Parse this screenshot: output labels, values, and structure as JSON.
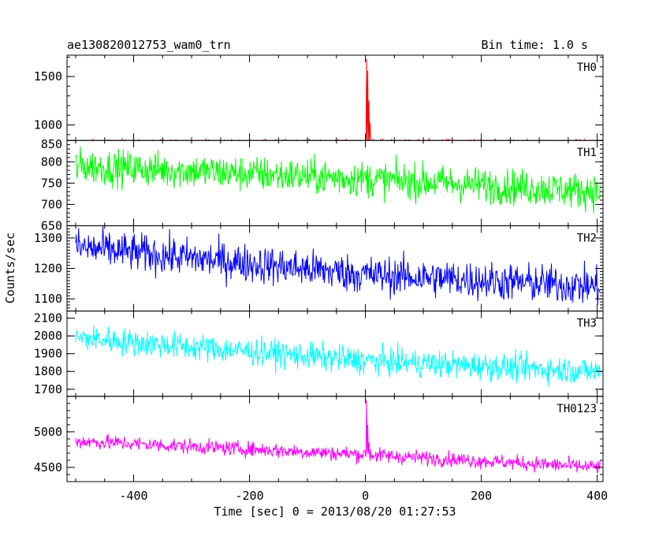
{
  "chart_data": {
    "type": "line",
    "title": "ae130820012753_wam0_trn",
    "subtitle": "Bin time: 1.0 s",
    "xlabel": "Time [sec] 0 = 2013/08/20 01:27:53",
    "ylabel": "Counts/sec",
    "xlim": [
      -515,
      410
    ],
    "x_ticks": [
      -400,
      -200,
      0,
      200,
      400
    ],
    "x_range": [
      -500,
      405
    ],
    "grid": false,
    "panels": [
      {
        "name": "TH0",
        "color": "#ff0000",
        "ylim": [
          840,
          1720
        ],
        "y_ticks": [
          1000,
          1500
        ],
        "trend": [
          [
            -500,
            820
          ],
          [
            0,
            820
          ],
          [
            405,
            820
          ]
        ],
        "noise_amplitude": 22,
        "peaks": [
          {
            "x": 2,
            "y": 1680
          },
          {
            "x": 4,
            "y": 1560
          },
          {
            "x": 6,
            "y": 1250
          },
          {
            "x": 8,
            "y": 1020
          }
        ]
      },
      {
        "name": "TH1",
        "color": "#00ff00",
        "ylim": [
          650,
          850
        ],
        "y_ticks": [
          650,
          700,
          750,
          800,
          850
        ],
        "trend": [
          [
            -500,
            790
          ],
          [
            0,
            760
          ],
          [
            405,
            730
          ]
        ],
        "noise_amplitude": 30,
        "peaks": []
      },
      {
        "name": "TH2",
        "color": "#0000ff",
        "ylim": [
          1060,
          1340
        ],
        "y_ticks": [
          1100,
          1200,
          1300
        ],
        "trend": [
          [
            -500,
            1270
          ],
          [
            0,
            1180
          ],
          [
            405,
            1140
          ]
        ],
        "noise_amplitude": 45,
        "peaks": []
      },
      {
        "name": "TH3",
        "color": "#00ffff",
        "ylim": [
          1660,
          2140
        ],
        "y_ticks": [
          1700,
          1800,
          1900,
          2000,
          2100
        ],
        "trend": [
          [
            -500,
            1990
          ],
          [
            0,
            1860
          ],
          [
            405,
            1800
          ]
        ],
        "noise_amplitude": 55,
        "peaks": []
      },
      {
        "name": "TH0123",
        "color": "#ff00ff",
        "ylim": [
          4300,
          5500
        ],
        "y_ticks": [
          4500,
          5000
        ],
        "trend": [
          [
            -500,
            4870
          ],
          [
            0,
            4680
          ],
          [
            405,
            4500
          ]
        ],
        "noise_amplitude": 75,
        "peaks": [
          {
            "x": 2,
            "y": 5450
          },
          {
            "x": 4,
            "y": 5100
          },
          {
            "x": 6,
            "y": 4850
          }
        ]
      }
    ]
  }
}
